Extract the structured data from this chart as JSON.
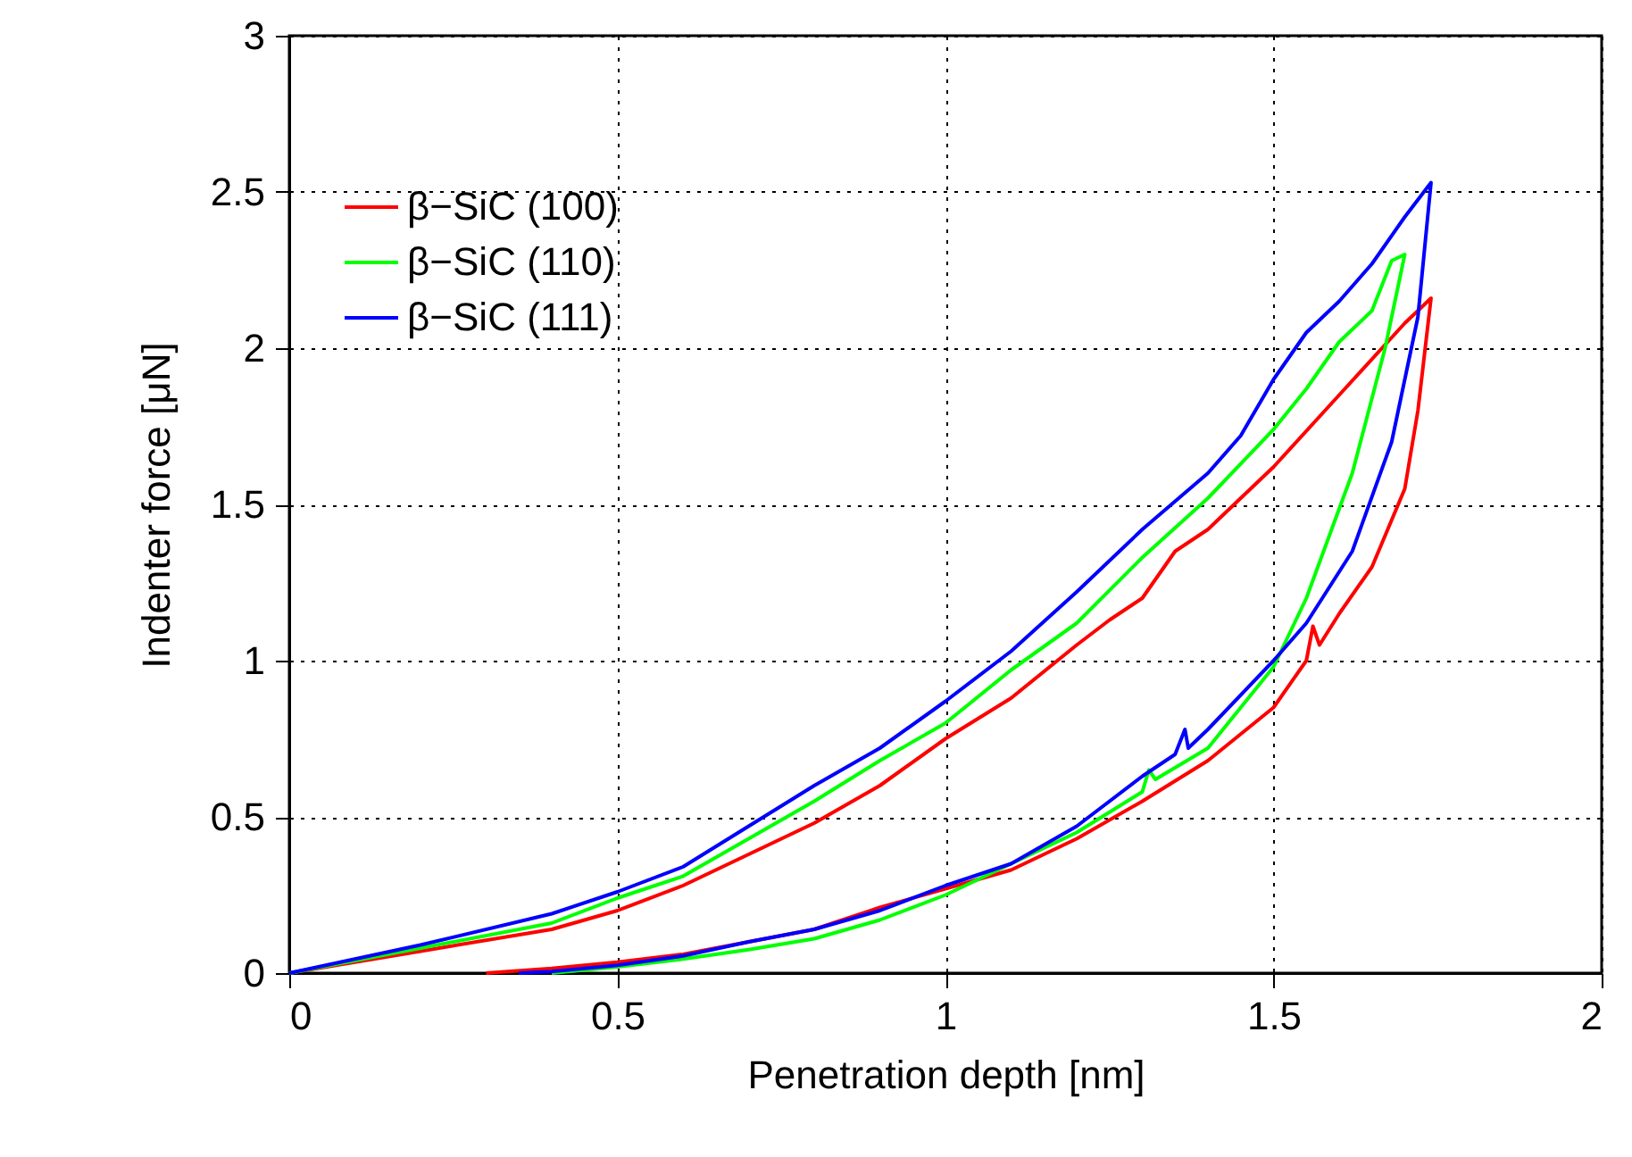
{
  "chart_data": {
    "type": "line",
    "xlabel": "Penetration depth [nm]",
    "ylabel": "Indenter force [μN]",
    "xlim": [
      0,
      2
    ],
    "xticks": [
      0,
      0.5,
      1,
      1.5,
      2
    ],
    "ylim": [
      0,
      3
    ],
    "yticks": [
      0,
      0.5,
      1,
      1.5,
      2,
      2.5,
      3
    ],
    "grid": true,
    "legend": "top left",
    "line_style": "solid",
    "marker": "none",
    "series": [
      {
        "name": "β−SiC (100)",
        "color": "#ff0000",
        "x": [
          0,
          0.2,
          0.4,
          0.5,
          0.6,
          0.7,
          0.8,
          0.9,
          1.0,
          1.1,
          1.2,
          1.25,
          1.3,
          1.35,
          1.4,
          1.5,
          1.6,
          1.7,
          1.74,
          1.72,
          1.7,
          1.65,
          1.6,
          1.57,
          1.56,
          1.55,
          1.5,
          1.4,
          1.3,
          1.2,
          1.1,
          1.0,
          0.9,
          0.8,
          0.7,
          0.6,
          0.5,
          0.4,
          0.3
        ],
        "values": [
          0,
          0.07,
          0.14,
          0.2,
          0.28,
          0.38,
          0.48,
          0.6,
          0.75,
          0.88,
          1.05,
          1.13,
          1.2,
          1.35,
          1.42,
          1.62,
          1.85,
          2.08,
          2.16,
          1.8,
          1.55,
          1.3,
          1.15,
          1.05,
          1.11,
          1.0,
          0.85,
          0.68,
          0.55,
          0.43,
          0.33,
          0.27,
          0.21,
          0.14,
          0.1,
          0.06,
          0.035,
          0.015,
          0
        ]
      },
      {
        "name": "β−SiC (110)",
        "color": "#00ff00",
        "x": [
          0,
          0.2,
          0.4,
          0.5,
          0.6,
          0.7,
          0.8,
          0.9,
          1.0,
          1.1,
          1.2,
          1.3,
          1.4,
          1.5,
          1.55,
          1.6,
          1.65,
          1.68,
          1.7,
          1.67,
          1.62,
          1.55,
          1.5,
          1.45,
          1.4,
          1.32,
          1.31,
          1.3,
          1.2,
          1.1,
          1.0,
          0.9,
          0.8,
          0.7,
          0.6,
          0.5,
          0.4
        ],
        "values": [
          0,
          0.08,
          0.16,
          0.24,
          0.31,
          0.43,
          0.55,
          0.68,
          0.8,
          0.97,
          1.12,
          1.33,
          1.52,
          1.74,
          1.87,
          2.02,
          2.12,
          2.28,
          2.3,
          2.0,
          1.6,
          1.2,
          0.98,
          0.85,
          0.72,
          0.62,
          0.65,
          0.58,
          0.45,
          0.35,
          0.25,
          0.17,
          0.11,
          0.075,
          0.045,
          0.02,
          0
        ]
      },
      {
        "name": "β−SiC (111)",
        "color": "#0000ff",
        "x": [
          0,
          0.2,
          0.4,
          0.5,
          0.6,
          0.7,
          0.8,
          0.9,
          1.0,
          1.1,
          1.2,
          1.3,
          1.4,
          1.45,
          1.5,
          1.55,
          1.6,
          1.65,
          1.7,
          1.74,
          1.72,
          1.68,
          1.62,
          1.55,
          1.5,
          1.4,
          1.37,
          1.365,
          1.35,
          1.3,
          1.2,
          1.1,
          1.0,
          0.9,
          0.8,
          0.7,
          0.6,
          0.5,
          0.4,
          0.35
        ],
        "values": [
          0,
          0.09,
          0.19,
          0.26,
          0.34,
          0.47,
          0.6,
          0.72,
          0.87,
          1.03,
          1.22,
          1.42,
          1.6,
          1.72,
          1.9,
          2.05,
          2.15,
          2.27,
          2.42,
          2.53,
          2.1,
          1.7,
          1.35,
          1.12,
          1.0,
          0.78,
          0.72,
          0.78,
          0.7,
          0.63,
          0.47,
          0.35,
          0.28,
          0.2,
          0.14,
          0.1,
          0.055,
          0.025,
          0.005,
          0
        ]
      }
    ]
  }
}
